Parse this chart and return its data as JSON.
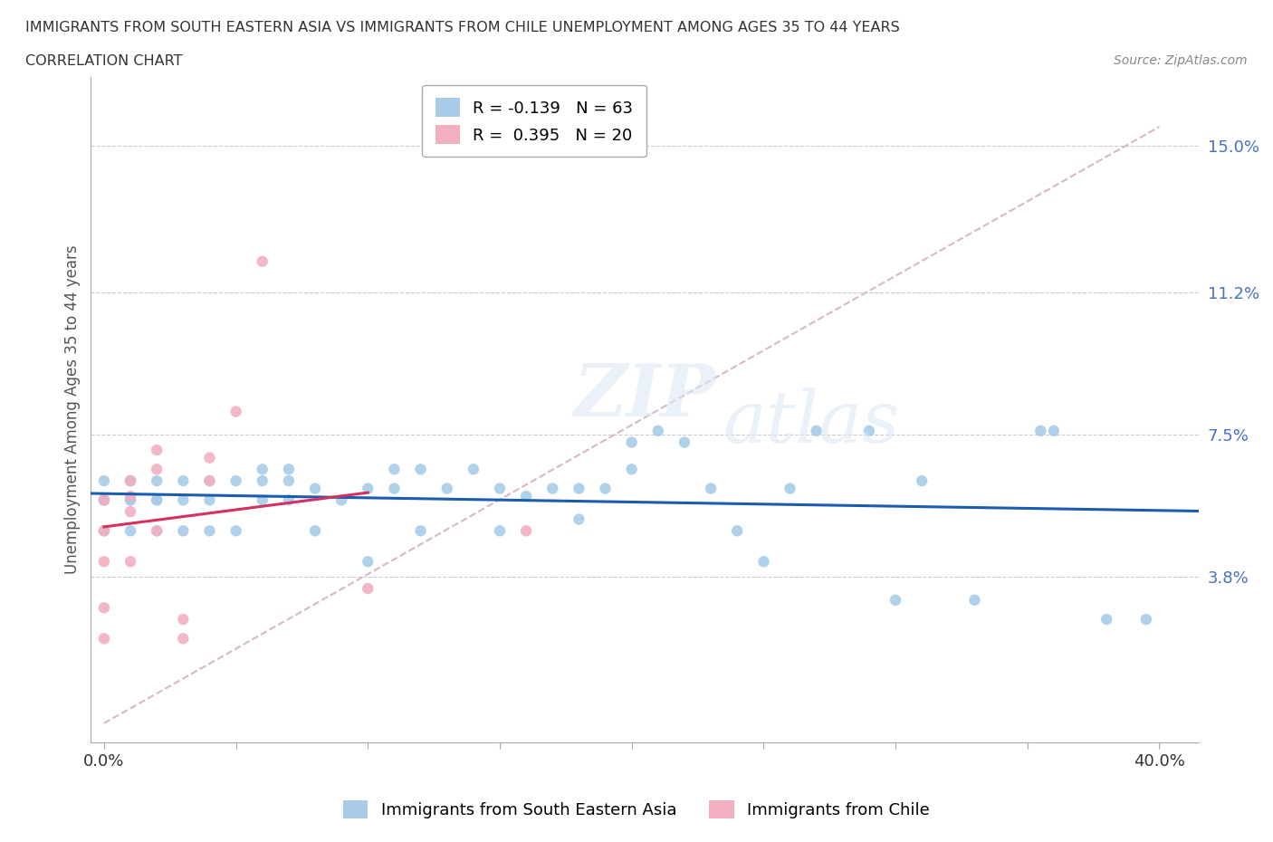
{
  "title_line1": "IMMIGRANTS FROM SOUTH EASTERN ASIA VS IMMIGRANTS FROM CHILE UNEMPLOYMENT AMONG AGES 35 TO 44 YEARS",
  "title_line2": "CORRELATION CHART",
  "source_text": "Source: ZipAtlas.com",
  "ylabel": "Unemployment Among Ages 35 to 44 years",
  "xlim": [
    -0.005,
    0.415
  ],
  "ylim": [
    -0.005,
    0.168
  ],
  "yticks": [
    0.038,
    0.075,
    0.112,
    0.15
  ],
  "ytick_labels": [
    "3.8%",
    "7.5%",
    "11.2%",
    "15.0%"
  ],
  "xticks": [
    0.0,
    0.05,
    0.1,
    0.15,
    0.2,
    0.25,
    0.3,
    0.35,
    0.4
  ],
  "xtick_labels": [
    "0.0%",
    "",
    "",
    "",
    "",
    "",
    "",
    "",
    "40.0%"
  ],
  "legend_r1": "R = -0.139   N = 63",
  "legend_r2": "R =  0.395   N = 20",
  "color_blue": "#a8cce8",
  "color_pink": "#f2afc0",
  "color_trend_blue": "#1a5cb0",
  "color_trend_pink": "#d63060",
  "color_ref_line": "#d8b8c8",
  "blue_scatter_x": [
    0.0,
    0.0,
    0.0,
    0.0,
    0.0,
    0.01,
    0.01,
    0.01,
    0.01,
    0.01,
    0.02,
    0.02,
    0.02,
    0.02,
    0.03,
    0.03,
    0.03,
    0.04,
    0.04,
    0.04,
    0.05,
    0.05,
    0.06,
    0.06,
    0.06,
    0.07,
    0.07,
    0.07,
    0.08,
    0.08,
    0.09,
    0.1,
    0.1,
    0.11,
    0.11,
    0.12,
    0.12,
    0.13,
    0.14,
    0.15,
    0.15,
    0.16,
    0.17,
    0.18,
    0.18,
    0.19,
    0.2,
    0.2,
    0.21,
    0.22,
    0.23,
    0.24,
    0.25,
    0.26,
    0.27,
    0.29,
    0.3,
    0.31,
    0.33,
    0.355,
    0.36,
    0.38,
    0.395
  ],
  "blue_scatter_y": [
    0.058,
    0.058,
    0.063,
    0.058,
    0.05,
    0.058,
    0.058,
    0.063,
    0.063,
    0.05,
    0.058,
    0.063,
    0.05,
    0.058,
    0.058,
    0.063,
    0.05,
    0.063,
    0.058,
    0.05,
    0.063,
    0.05,
    0.066,
    0.063,
    0.058,
    0.066,
    0.063,
    0.058,
    0.061,
    0.05,
    0.058,
    0.061,
    0.042,
    0.066,
    0.061,
    0.066,
    0.05,
    0.061,
    0.066,
    0.061,
    0.05,
    0.059,
    0.061,
    0.061,
    0.053,
    0.061,
    0.073,
    0.066,
    0.076,
    0.073,
    0.061,
    0.05,
    0.042,
    0.061,
    0.076,
    0.076,
    0.032,
    0.063,
    0.032,
    0.076,
    0.076,
    0.027,
    0.027
  ],
  "pink_scatter_x": [
    0.0,
    0.0,
    0.0,
    0.0,
    0.0,
    0.01,
    0.01,
    0.01,
    0.01,
    0.02,
    0.02,
    0.02,
    0.03,
    0.03,
    0.04,
    0.04,
    0.05,
    0.06,
    0.1,
    0.16
  ],
  "pink_scatter_y": [
    0.058,
    0.05,
    0.042,
    0.03,
    0.022,
    0.063,
    0.059,
    0.055,
    0.042,
    0.071,
    0.066,
    0.05,
    0.027,
    0.022,
    0.069,
    0.063,
    0.081,
    0.12,
    0.035,
    0.05
  ]
}
